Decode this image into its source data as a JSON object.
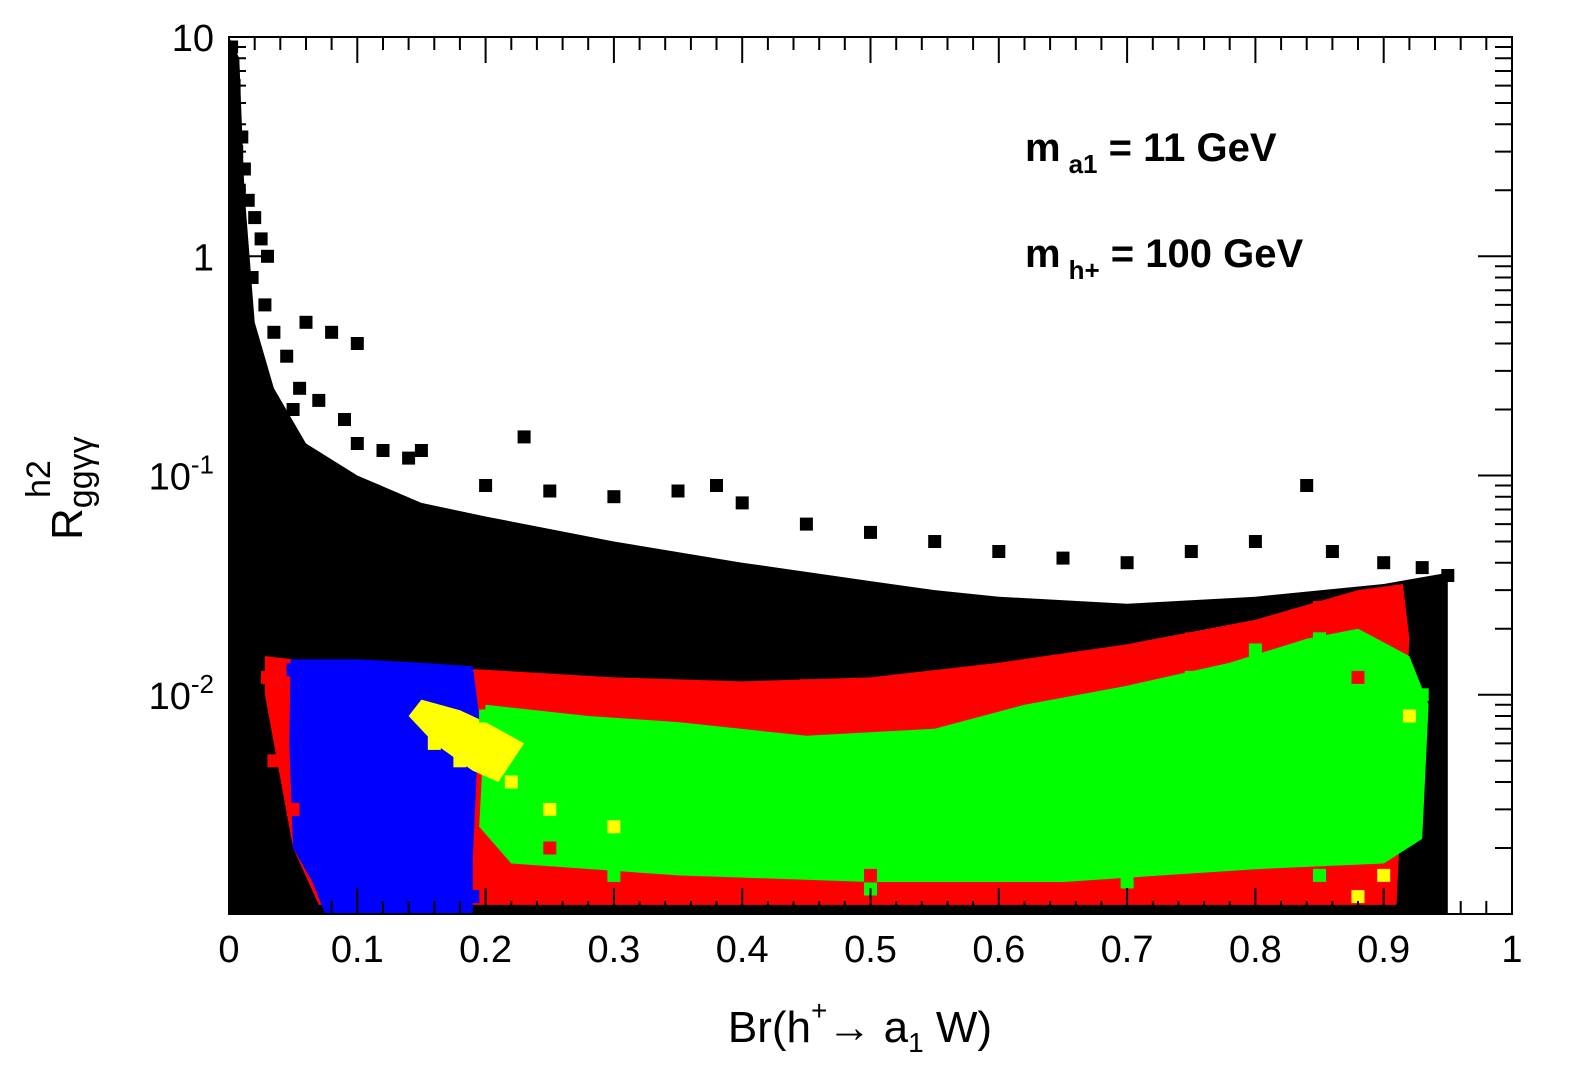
{
  "chart_data": {
    "type": "scatter",
    "title": "",
    "xlabel": {
      "main": "Br(h",
      "sup": "+",
      "arrow": "→ a",
      "sub": "1",
      "tail": " W)"
    },
    "ylabel": {
      "main": "R",
      "sup": "h2",
      "sub": "ggγγ"
    },
    "xlim": [
      0,
      1
    ],
    "ylim": [
      0.001,
      10
    ],
    "yscale": "log",
    "grid": false,
    "x_ticks": [
      "0",
      "0.1",
      "0.2",
      "0.3",
      "0.4",
      "0.5",
      "0.6",
      "0.7",
      "0.8",
      "0.9",
      "1"
    ],
    "y_ticks": [
      {
        "base": "10",
        "exp": "",
        "value": 10
      },
      {
        "base": "1",
        "exp": "",
        "value": 1
      },
      {
        "base": "10",
        "exp": "-1",
        "value": 0.1
      },
      {
        "base": "10",
        "exp": "-2",
        "value": 0.01
      }
    ],
    "annotations": [
      {
        "main": "m",
        "sub": "a1",
        "tail": " = 11 GeV"
      },
      {
        "main": "m",
        "sub": "h+",
        "tail": " = 100 GeV"
      }
    ],
    "colors": {
      "black": "#000000",
      "red": "#ff0000",
      "blue": "#0000ff",
      "yellow": "#ffff00",
      "green": "#00ff00"
    },
    "series": [
      {
        "color": "#000000",
        "points": [
          [
            0.002,
            9.0
          ],
          [
            0.004,
            6.0
          ],
          [
            0.003,
            4.5
          ],
          [
            0.006,
            3.0
          ],
          [
            0.01,
            3.5
          ],
          [
            0.012,
            2.5
          ],
          [
            0.015,
            1.8
          ],
          [
            0.02,
            1.5
          ],
          [
            0.025,
            1.2
          ],
          [
            0.03,
            1.0
          ],
          [
            0.008,
            2.0
          ],
          [
            0.018,
            0.8
          ],
          [
            0.028,
            0.6
          ],
          [
            0.035,
            0.45
          ],
          [
            0.045,
            0.35
          ],
          [
            0.055,
            0.25
          ],
          [
            0.06,
            0.5
          ],
          [
            0.08,
            0.45
          ],
          [
            0.1,
            0.4
          ],
          [
            0.05,
            0.2
          ],
          [
            0.07,
            0.22
          ],
          [
            0.09,
            0.18
          ],
          [
            0.1,
            0.14
          ],
          [
            0.12,
            0.13
          ],
          [
            0.14,
            0.12
          ],
          [
            0.15,
            0.13
          ],
          [
            0.23,
            0.15
          ],
          [
            0.2,
            0.09
          ],
          [
            0.25,
            0.085
          ],
          [
            0.3,
            0.08
          ],
          [
            0.35,
            0.085
          ],
          [
            0.38,
            0.09
          ],
          [
            0.4,
            0.075
          ],
          [
            0.45,
            0.06
          ],
          [
            0.5,
            0.055
          ],
          [
            0.55,
            0.05
          ],
          [
            0.6,
            0.045
          ],
          [
            0.65,
            0.042
          ],
          [
            0.7,
            0.04
          ],
          [
            0.75,
            0.045
          ],
          [
            0.8,
            0.05
          ],
          [
            0.84,
            0.09
          ],
          [
            0.86,
            0.045
          ],
          [
            0.9,
            0.04
          ],
          [
            0.93,
            0.038
          ],
          [
            0.95,
            0.035
          ]
        ]
      },
      {
        "color": "#ff0000",
        "points": [
          [
            0.03,
            0.012
          ],
          [
            0.04,
            0.009
          ],
          [
            0.035,
            0.005
          ],
          [
            0.05,
            0.003
          ],
          [
            0.2,
            0.012
          ],
          [
            0.3,
            0.011
          ],
          [
            0.45,
            0.011
          ],
          [
            0.55,
            0.012
          ],
          [
            0.65,
            0.014
          ],
          [
            0.75,
            0.018
          ],
          [
            0.85,
            0.025
          ],
          [
            0.9,
            0.028
          ],
          [
            0.25,
            0.002
          ],
          [
            0.5,
            0.0015
          ],
          [
            0.7,
            0.0013
          ],
          [
            0.88,
            0.012
          ]
        ]
      },
      {
        "color": "#0000ff",
        "points": [
          [
            0.05,
            0.013
          ],
          [
            0.1,
            0.013
          ],
          [
            0.15,
            0.013
          ],
          [
            0.18,
            0.012
          ],
          [
            0.06,
            0.003
          ],
          [
            0.1,
            0.002
          ],
          [
            0.15,
            0.0015
          ],
          [
            0.19,
            0.0012
          ]
        ]
      },
      {
        "color": "#ffff00",
        "points": [
          [
            0.15,
            0.008
          ],
          [
            0.17,
            0.007
          ],
          [
            0.18,
            0.005
          ],
          [
            0.16,
            0.006
          ],
          [
            0.22,
            0.004
          ],
          [
            0.25,
            0.003
          ],
          [
            0.3,
            0.0025
          ],
          [
            0.9,
            0.0015
          ],
          [
            0.92,
            0.008
          ],
          [
            0.88,
            0.0012
          ]
        ]
      },
      {
        "color": "#00ff00",
        "points": [
          [
            0.2,
            0.008
          ],
          [
            0.25,
            0.006
          ],
          [
            0.3,
            0.005
          ],
          [
            0.35,
            0.006
          ],
          [
            0.4,
            0.005
          ],
          [
            0.45,
            0.004
          ],
          [
            0.5,
            0.005
          ],
          [
            0.55,
            0.004
          ],
          [
            0.6,
            0.006
          ],
          [
            0.65,
            0.008
          ],
          [
            0.7,
            0.01
          ],
          [
            0.75,
            0.012
          ],
          [
            0.8,
            0.016
          ],
          [
            0.85,
            0.018
          ],
          [
            0.9,
            0.012
          ],
          [
            0.93,
            0.01
          ],
          [
            0.3,
            0.0015
          ],
          [
            0.5,
            0.0013
          ],
          [
            0.7,
            0.0014
          ],
          [
            0.85,
            0.0015
          ]
        ]
      }
    ]
  }
}
